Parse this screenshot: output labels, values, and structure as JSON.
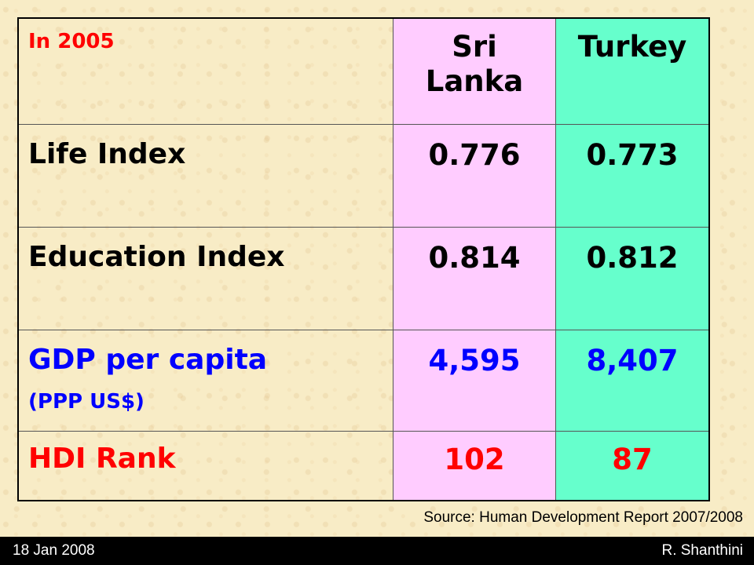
{
  "table": {
    "header": {
      "label": "In 2005",
      "country1_line1": "Sri",
      "country1_line2": "Lanka",
      "country2": "Turkey"
    },
    "rows": [
      {
        "label": "Life Index",
        "sublabel": "",
        "sri_lanka": "0.776",
        "turkey": "0.773",
        "color": "#000000"
      },
      {
        "label": "Education Index",
        "sublabel": "",
        "sri_lanka": "0.814",
        "turkey": "0.812",
        "color": "#000000"
      },
      {
        "label": "GDP per capita",
        "sublabel": "(PPP US$)",
        "sri_lanka": "4,595",
        "turkey": "8,407",
        "color": "#0000ff"
      },
      {
        "label": "HDI Rank",
        "sublabel": "",
        "sri_lanka": "102",
        "turkey": "87",
        "color": "#ff0000"
      }
    ],
    "colors": {
      "sri_lanka_col": "#ffccff",
      "turkey_col": "#66ffcc",
      "header_label": "#ff0000"
    }
  },
  "source": "Source: Human Development Report 2007/2008",
  "footer": {
    "date": "18 Jan 2008",
    "author": "R. Shanthini"
  }
}
